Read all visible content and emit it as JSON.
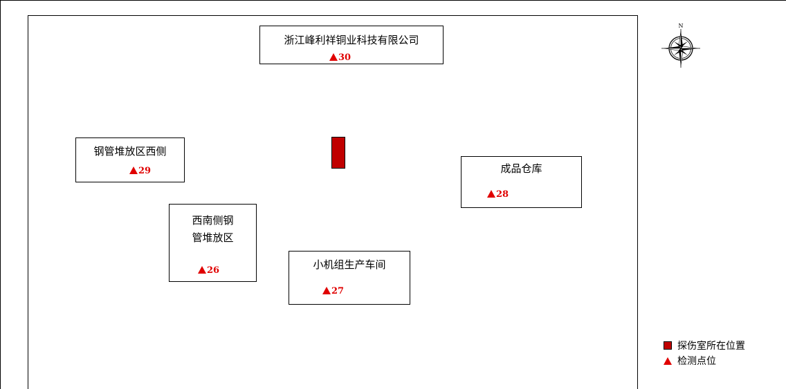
{
  "compass": {
    "north_label": "N"
  },
  "areas": [
    {
      "id": "a30",
      "name_lines": [
        "浙江峰利祥铜业科技有限公司"
      ],
      "point": "30"
    },
    {
      "id": "a29",
      "name_lines": [
        "钢管堆放区西侧"
      ],
      "point": "29"
    },
    {
      "id": "a28",
      "name_lines": [
        "成品仓库"
      ],
      "point": "28"
    },
    {
      "id": "a26",
      "name_lines": [
        "西南侧钢",
        "管堆放区"
      ],
      "point": "26"
    },
    {
      "id": "a27",
      "name_lines": [
        "小机组生产车间"
      ],
      "point": "27"
    }
  ],
  "legend": {
    "room_label": "探伤室所在位置",
    "point_label": "检测点位"
  },
  "colors": {
    "room_fill": "#c00000",
    "point_marker": "#e00000"
  }
}
